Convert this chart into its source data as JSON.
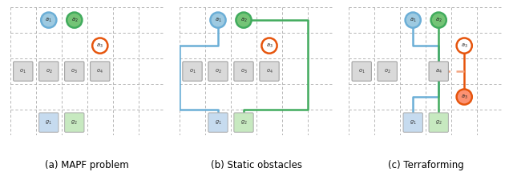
{
  "fig_width": 6.4,
  "fig_height": 2.2,
  "dpi": 100,
  "panels": [
    {
      "title": "(a) MAPF problem",
      "agents": [
        {
          "label": "a_1",
          "col": 2,
          "row": 1,
          "circle_color": "#6baed6",
          "fill_color": "#9ecae1"
        },
        {
          "label": "a_2",
          "col": 3,
          "row": 1,
          "circle_color": "#41ab5d",
          "fill_color": "#74c476"
        },
        {
          "label": "a_3",
          "col": 4,
          "row": 2,
          "circle_color": "#e6550d",
          "fill_color": "white"
        }
      ],
      "obstacles": [
        {
          "label": "o_1",
          "col": 1,
          "row": 3
        },
        {
          "label": "o_2",
          "col": 2,
          "row": 3
        },
        {
          "label": "o_3",
          "col": 3,
          "row": 3
        },
        {
          "label": "o_4",
          "col": 4,
          "row": 3
        }
      ],
      "goals": [
        {
          "label": "g_1",
          "col": 2,
          "row": 5,
          "fill_color": "#c6dbef"
        },
        {
          "label": "g_2",
          "col": 3,
          "row": 5,
          "fill_color": "#c7e9c0"
        }
      ],
      "paths": []
    },
    {
      "title": "(b) Static obstacles",
      "agents": [
        {
          "label": "a_1",
          "col": 2,
          "row": 1,
          "circle_color": "#6baed6",
          "fill_color": "#9ecae1"
        },
        {
          "label": "a_2",
          "col": 3,
          "row": 1,
          "circle_color": "#41ab5d",
          "fill_color": "#74c476"
        },
        {
          "label": "a_3",
          "col": 4,
          "row": 2,
          "circle_color": "#e6550d",
          "fill_color": "white"
        }
      ],
      "obstacles": [
        {
          "label": "o_1",
          "col": 1,
          "row": 3
        },
        {
          "label": "o_2",
          "col": 2,
          "row": 3
        },
        {
          "label": "o_3",
          "col": 3,
          "row": 3
        },
        {
          "label": "o_4",
          "col": 4,
          "row": 3
        }
      ],
      "goals": [
        {
          "label": "g_1",
          "col": 2,
          "row": 5,
          "fill_color": "#c6dbef"
        },
        {
          "label": "g_2",
          "col": 3,
          "row": 5,
          "fill_color": "#c7e9c0"
        }
      ],
      "paths": [
        {
          "color": "#6baed6",
          "points": [
            [
              2,
              1
            ],
            [
              2,
              2
            ],
            [
              0.5,
              2
            ],
            [
              0.5,
              4
            ],
            [
              0.5,
              4.5
            ],
            [
              2,
              4.5
            ],
            [
              2,
              5
            ]
          ]
        },
        {
          "color": "#41ab5d",
          "points": [
            [
              3,
              1
            ],
            [
              5.5,
              1
            ],
            [
              5.5,
              4.5
            ],
            [
              3,
              4.5
            ],
            [
              3,
              5
            ]
          ]
        }
      ]
    },
    {
      "title": "(c) Terraforming",
      "agents": [
        {
          "label": "a_1",
          "col": 3,
          "row": 1,
          "circle_color": "#6baed6",
          "fill_color": "#9ecae1"
        },
        {
          "label": "a_2",
          "col": 4,
          "row": 1,
          "circle_color": "#41ab5d",
          "fill_color": "#74c476"
        },
        {
          "label": "a_3",
          "col": 5,
          "row": 2,
          "circle_color": "#e6550d",
          "fill_color": "white"
        },
        {
          "label": "a_3",
          "col": 5,
          "row": 4,
          "circle_color": "#e6550d",
          "fill_color": "#fc9272"
        },
        {
          "label": "a_4",
          "col": 4,
          "row": 3,
          "is_obstacle": true
        }
      ],
      "obstacles": [
        {
          "label": "o_1",
          "col": 1,
          "row": 3
        },
        {
          "label": "o_2",
          "col": 2,
          "row": 3
        }
      ],
      "goals": [
        {
          "label": "g_1",
          "col": 3,
          "row": 5,
          "fill_color": "#c6dbef"
        },
        {
          "label": "g_2",
          "col": 4,
          "row": 5,
          "fill_color": "#c7e9c0"
        }
      ],
      "paths": [
        {
          "color": "#6baed6",
          "points": [
            [
              3,
              1
            ],
            [
              3,
              2
            ],
            [
              4,
              2
            ],
            [
              4,
              3
            ],
            [
              4,
              4
            ],
            [
              3,
              4
            ],
            [
              3,
              5
            ]
          ]
        },
        {
          "color": "#41ab5d",
          "points": [
            [
              4,
              1
            ],
            [
              4,
              2
            ],
            [
              4,
              3
            ],
            [
              4,
              4
            ],
            [
              4,
              5
            ]
          ]
        },
        {
          "color": "#e6550d",
          "points": [
            [
              5,
              2
            ],
            [
              5,
              3
            ],
            [
              5,
              4
            ]
          ]
        },
        {
          "color": "#f4a582",
          "style": "dashed",
          "points": [
            [
              5,
              3
            ],
            [
              4,
              3
            ]
          ]
        }
      ]
    }
  ],
  "grid_cols": 6,
  "grid_rows": 6,
  "grid_color": "#aaaaaa",
  "bg_color": "white",
  "caption_fontsize": 8.5
}
